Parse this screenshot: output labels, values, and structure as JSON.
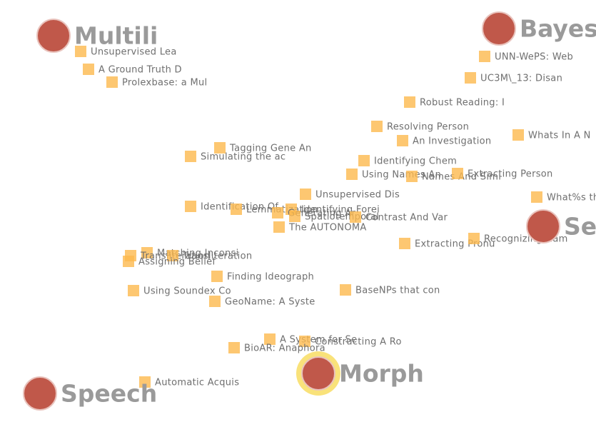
{
  "topics": [
    {
      "label": "Multili"
    },
    {
      "label": "Bayes"
    },
    {
      "label": "Seg"
    },
    {
      "label": "Morph"
    },
    {
      "label": "Speech"
    }
  ],
  "documents": [
    {
      "label": "Unsupervised Lea"
    },
    {
      "label": "A Ground Truth D"
    },
    {
      "label": "Prolexbase: a Mul"
    },
    {
      "label": "UNN-WePS: Web"
    },
    {
      "label": "UC3M\\_13: Disan"
    },
    {
      "label": "Robust Reading: I"
    },
    {
      "label": "Resolving Person"
    },
    {
      "label": "An Investigation"
    },
    {
      "label": "Whats In A N"
    },
    {
      "label": "Tagging Gene An"
    },
    {
      "label": "Simulating the ac"
    },
    {
      "label": "Identifying Chem"
    },
    {
      "label": "Using Names An"
    },
    {
      "label": "Names And Simi"
    },
    {
      "label": "Extracting Person"
    },
    {
      "label": "Unsupervised Dis"
    },
    {
      "label": "What%s th"
    },
    {
      "label": "Identification Of"
    },
    {
      "label": "Lemmatization"
    },
    {
      "label": "Identifying Forei"
    },
    {
      "label": "Generating Ar"
    },
    {
      "label": "Spatiotemporal"
    },
    {
      "label": "Contrast And Var"
    },
    {
      "label": "The AUTONOMA"
    },
    {
      "label": "Extracting Pronu"
    },
    {
      "label": "Recognizing Nam"
    },
    {
      "label": "Matching Inconsi"
    },
    {
      "label": "Transliteration"
    },
    {
      "label": "Transliteration"
    },
    {
      "label": "Assigning Belief"
    },
    {
      "label": "Finding Ideograph"
    },
    {
      "label": "Using Soundex Co"
    },
    {
      "label": "BaseNPs that con"
    },
    {
      "label": "GeoName: A Syste"
    },
    {
      "label": "A System for Se"
    },
    {
      "label": "Constructing A Ro"
    },
    {
      "label": "BioAR: Anaphora"
    },
    {
      "label": "Automatic Acquis"
    }
  ]
}
